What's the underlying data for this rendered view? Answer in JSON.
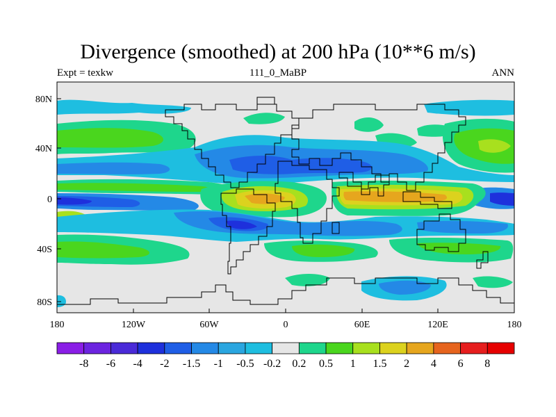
{
  "title": "Divergence (smoothed) at 200 hPa (10**6 m/s)",
  "subtitle_left": "Expt = texkw",
  "subtitle_center": "111_0_MaBP",
  "subtitle_right": "ANN",
  "lat_ticks": [
    "80N",
    "40N",
    "0",
    "40S",
    "80S"
  ],
  "lon_ticks": [
    "180",
    "120W",
    "60W",
    "0",
    "60E",
    "120E",
    "180"
  ],
  "colorbar": {
    "labels": [
      "-8",
      "-6",
      "-4",
      "-2",
      "-1.5",
      "-1",
      "-0.5",
      "-0.2",
      "0.2",
      "0.5",
      "1",
      "1.5",
      "2",
      "4",
      "6",
      "8"
    ],
    "colors": [
      "#8a1ee6",
      "#6c24e0",
      "#4a2ad8",
      "#1e30dc",
      "#1f5ee6",
      "#2489e6",
      "#2aa6e0",
      "#1ebee0",
      "#e6e6e6",
      "#1ed68c",
      "#4ad61e",
      "#a8e01e",
      "#dcd21e",
      "#e6a61e",
      "#e6641e",
      "#e61e1e",
      "#e60000"
    ]
  },
  "palette": {
    "background": "#e6e6e6",
    "neg_light": "#1ebee0",
    "neg_mid": "#2489e6",
    "neg_strong": "#1f5ee6",
    "neg_max": "#1e30dc",
    "pos_light": "#1ed68c",
    "pos_mid": "#4ad61e",
    "pos_strong": "#a8e01e",
    "pos_high": "#dcd21e",
    "pos_max": "#e6a61e",
    "coast": "#000000"
  }
}
